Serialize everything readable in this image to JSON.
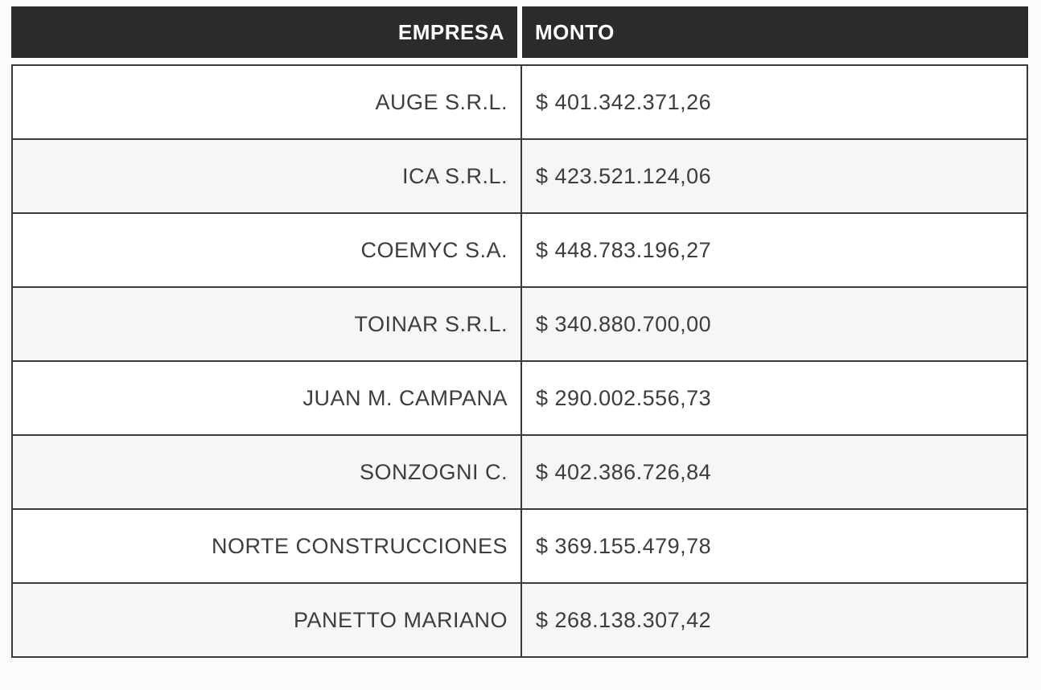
{
  "table": {
    "headers": {
      "empresa": "EMPRESA",
      "monto": "MONTO"
    },
    "rows": [
      {
        "empresa": "AUGE S.R.L.",
        "monto": "$ 401.342.371,26"
      },
      {
        "empresa": "ICA S.R.L.",
        "monto": "$ 423.521.124,06"
      },
      {
        "empresa": "COEMYC S.A.",
        "monto": "$ 448.783.196,27"
      },
      {
        "empresa": "TOINAR S.R.L.",
        "monto": "$ 340.880.700,00"
      },
      {
        "empresa": "JUAN M. CAMPANA",
        "monto": "$ 290.002.556,73"
      },
      {
        "empresa": "SONZOGNI C.",
        "monto": "$ 402.386.726,84"
      },
      {
        "empresa": "NORTE CONSTRUCCIONES",
        "monto": "$ 369.155.479,78"
      },
      {
        "empresa": "PANETTO MARIANO",
        "monto": "$ 268.138.307,42"
      }
    ]
  },
  "colors": {
    "header_bg": "#2b2b2b",
    "header_text": "#ffffff",
    "border": "#3a3a3a",
    "row_bg": "#ffffff",
    "row_alt_bg": "#f6f6f6",
    "body_text": "#3d3d3d",
    "page_bg": "#fbfbfb"
  },
  "chart_data": {
    "type": "table",
    "columns": [
      "EMPRESA",
      "MONTO"
    ],
    "rows": [
      [
        "AUGE S.R.L.",
        "$ 401.342.371,26"
      ],
      [
        "ICA S.R.L.",
        "$ 423.521.124,06"
      ],
      [
        "COEMYC S.A.",
        "$ 448.783.196,27"
      ],
      [
        "TOINAR S.R.L.",
        "$ 340.880.700,00"
      ],
      [
        "JUAN M. CAMPANA",
        "$ 290.002.556,73"
      ],
      [
        "SONZOGNI C.",
        "$ 402.386.726,84"
      ],
      [
        "NORTE CONSTRUCCIONES",
        "$ 369.155.479,78"
      ],
      [
        "PANETTO MARIANO",
        "$ 268.138.307,42"
      ]
    ],
    "values_numeric": [
      401342371.26,
      423521124.06,
      448783196.27,
      340880700.0,
      290002556.73,
      402386726.84,
      369155479.78,
      268138307.42
    ],
    "currency": "$",
    "title": "",
    "legend": "none",
    "grid": "on"
  }
}
